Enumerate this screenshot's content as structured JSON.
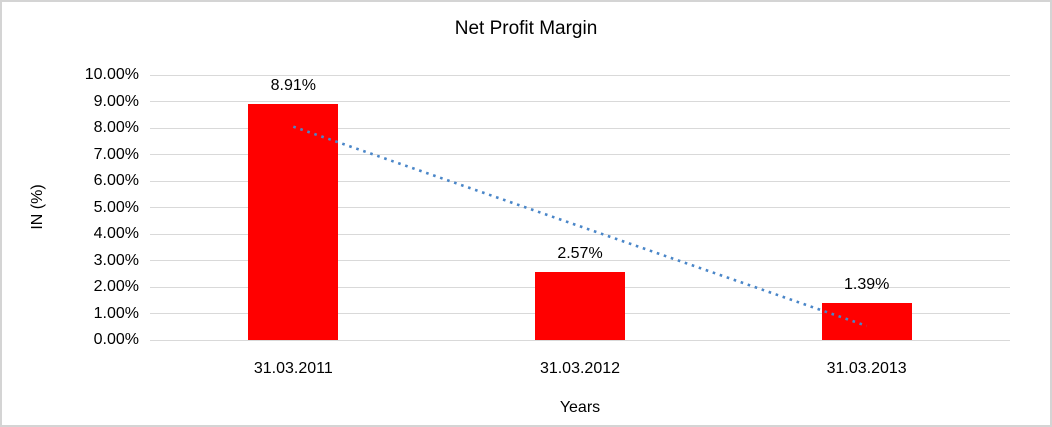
{
  "chart_data": {
    "type": "bar",
    "title": "Net Profit Margin",
    "xlabel": "Years",
    "ylabel": "IN (%)",
    "categories": [
      "31.03.2011",
      "31.03.2012",
      "31.03.2013"
    ],
    "values": [
      8.91,
      2.57,
      1.39
    ],
    "data_labels": [
      "8.91%",
      "2.57%",
      "1.39%"
    ],
    "ylim": [
      0,
      10
    ],
    "ytick_step": 1,
    "ytick_labels": [
      "0.00%",
      "1.00%",
      "2.00%",
      "3.00%",
      "4.00%",
      "5.00%",
      "6.00%",
      "7.00%",
      "8.00%",
      "9.00%",
      "10.00%"
    ],
    "grid": true,
    "legend": "none",
    "bar_color": "#ff0000",
    "gridline_color": "#d9d9d9",
    "text_color": "#000000",
    "trendline": {
      "type": "linear",
      "style": "dotted",
      "color": "#4a86c8",
      "start_value": 8.05,
      "end_value": 0.53
    }
  }
}
